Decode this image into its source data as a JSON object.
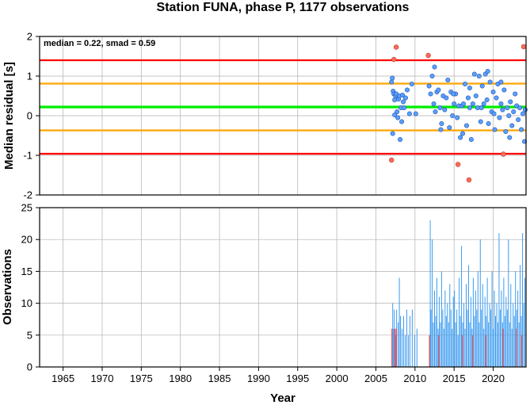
{
  "title": "Station FUNA, phase P, 1177 observations",
  "colors": {
    "upper_reference": "#ff0000",
    "smad_band": "#ffa500",
    "median_line": "#00ee00",
    "normal_point": "#5aa0ff",
    "outlier_point": "#ff6a5a",
    "bar_normal": "#3d9cf0",
    "bar_outlier": "#ff3030"
  },
  "chart_data": [
    {
      "type": "scatter",
      "annotation": "median = 0.22, smad = 0.59",
      "xlabel": "",
      "ylabel": "Median residual [s]",
      "xlim": [
        1962.0,
        2024.2
      ],
      "ylim": [
        -2,
        2
      ],
      "yticks": [
        "2",
        "1",
        "0",
        "-1",
        "-2"
      ],
      "grid": true,
      "hlines": [
        {
          "role": "median",
          "y": 0.22,
          "color": "#00ee00"
        },
        {
          "role": "median-plus-smad",
          "y": 0.81,
          "color": "#ffa500"
        },
        {
          "role": "median-minus-smad",
          "y": -0.37,
          "color": "#ffa500"
        },
        {
          "role": "upper-limit",
          "y": 1.4,
          "color": "#ff0000"
        },
        {
          "role": "lower-limit",
          "y": -0.96,
          "color": "#ff0000"
        }
      ],
      "points": [
        [
          2007.0,
          0.85
        ],
        [
          2007.1,
          0.95
        ],
        [
          2007.2,
          0.62
        ],
        [
          2007.3,
          0.55
        ],
        [
          2007.4,
          0.4
        ],
        [
          2007.5,
          0.5
        ],
        [
          2007.6,
          0.55
        ],
        [
          2007.7,
          0.1
        ],
        [
          2007.8,
          -0.05
        ],
        [
          2007.9,
          0.42
        ],
        [
          2008.0,
          0.5
        ],
        [
          2008.2,
          0.2
        ],
        [
          2008.3,
          -0.15
        ],
        [
          2008.4,
          0.52
        ],
        [
          2008.6,
          0.2
        ],
        [
          2008.8,
          0.45
        ],
        [
          2009.0,
          0.65
        ],
        [
          2009.3,
          0.05
        ],
        [
          2009.6,
          0.8
        ],
        [
          2010.1,
          0.05
        ],
        [
          2007.15,
          -0.45
        ],
        [
          2007.4,
          0.02
        ],
        [
          2008.1,
          -0.6
        ],
        [
          2008.5,
          0.35
        ],
        [
          2011.8,
          0.75
        ],
        [
          2012.0,
          0.55
        ],
        [
          2012.2,
          1.0
        ],
        [
          2012.4,
          0.3
        ],
        [
          2012.6,
          0.1
        ],
        [
          2012.8,
          0.6
        ],
        [
          2013.0,
          0.65
        ],
        [
          2013.2,
          0.2
        ],
        [
          2013.4,
          -0.2
        ],
        [
          2013.6,
          0.5
        ],
        [
          2013.8,
          0.15
        ],
        [
          2014.0,
          0.45
        ],
        [
          2014.2,
          0.9
        ],
        [
          2014.4,
          -0.3
        ],
        [
          2014.6,
          0.6
        ],
        [
          2014.8,
          0.0
        ],
        [
          2015.0,
          0.3
        ],
        [
          2015.2,
          0.55
        ],
        [
          2015.4,
          -0.05
        ],
        [
          2015.6,
          0.25
        ],
        [
          2015.8,
          -0.55
        ],
        [
          2016.0,
          0.25
        ],
        [
          2016.2,
          0.3
        ],
        [
          2016.4,
          0.8
        ],
        [
          2016.6,
          -0.25
        ],
        [
          2016.8,
          0.45
        ],
        [
          2017.0,
          0.2
        ],
        [
          2017.2,
          -0.6
        ],
        [
          2017.4,
          0.3
        ],
        [
          2017.6,
          1.05
        ],
        [
          2017.8,
          0.5
        ],
        [
          2018.0,
          0.2
        ],
        [
          2018.2,
          1.0
        ],
        [
          2018.4,
          -0.15
        ],
        [
          2018.6,
          0.75
        ],
        [
          2018.8,
          0.3
        ],
        [
          2019.0,
          1.05
        ],
        [
          2019.2,
          0.4
        ],
        [
          2019.4,
          -0.2
        ],
        [
          2019.6,
          0.85
        ],
        [
          2019.8,
          0.1
        ],
        [
          2020.0,
          0.6
        ],
        [
          2020.2,
          -0.35
        ],
        [
          2020.4,
          0.45
        ],
        [
          2020.6,
          0.8
        ],
        [
          2020.8,
          -0.05
        ],
        [
          2021.0,
          0.3
        ],
        [
          2021.2,
          0.15
        ],
        [
          2021.4,
          0.65
        ],
        [
          2021.6,
          -0.4
        ],
        [
          2021.8,
          0.2
        ],
        [
          2022.0,
          0.0
        ],
        [
          2022.2,
          0.35
        ],
        [
          2022.4,
          -0.25
        ],
        [
          2022.6,
          0.1
        ],
        [
          2022.8,
          0.55
        ],
        [
          2023.0,
          0.25
        ],
        [
          2023.2,
          -0.1
        ],
        [
          2023.4,
          0.2
        ],
        [
          2023.6,
          -0.35
        ],
        [
          2023.8,
          0.05
        ],
        [
          2024.0,
          -0.65
        ],
        [
          2024.1,
          0.15
        ],
        [
          2012.5,
          1.23
        ],
        [
          2013.3,
          -0.35
        ],
        [
          2014.9,
          0.55
        ],
        [
          2016.1,
          -0.45
        ],
        [
          2017.0,
          0.7
        ],
        [
          2018.5,
          0.2
        ],
        [
          2019.3,
          1.12
        ],
        [
          2020.1,
          0.05
        ],
        [
          2021.0,
          0.85
        ],
        [
          2022.1,
          -0.55
        ]
      ],
      "outliers": [
        [
          2007.0,
          -1.12
        ],
        [
          2007.3,
          1.42
        ],
        [
          2007.6,
          1.73
        ],
        [
          2011.7,
          1.52
        ],
        [
          2015.5,
          -1.23
        ],
        [
          2016.9,
          -1.62
        ],
        [
          2021.3,
          -0.97
        ],
        [
          2023.9,
          1.74
        ]
      ]
    },
    {
      "type": "bar",
      "xlabel": "Year",
      "ylabel": "Observations",
      "xlim": [
        1962.0,
        2024.2
      ],
      "ylim": [
        0,
        25
      ],
      "xticks": [
        "1965",
        "1970",
        "1975",
        "1980",
        "1985",
        "1990",
        "1995",
        "2000",
        "2005",
        "2010",
        "2015",
        "2020"
      ],
      "yticks": [
        "25",
        "20",
        "15",
        "10",
        "5",
        "0"
      ],
      "grid": true,
      "bar_width_years": 0.07,
      "bars": [
        [
          2007.1,
          10
        ],
        [
          2007.2,
          6
        ],
        [
          2007.3,
          9
        ],
        [
          2007.5,
          5
        ],
        [
          2007.6,
          9
        ],
        [
          2007.8,
          7
        ],
        [
          2007.95,
          14
        ],
        [
          2008.1,
          8
        ],
        [
          2008.3,
          6
        ],
        [
          2008.5,
          8
        ],
        [
          2008.7,
          5
        ],
        [
          2008.9,
          9
        ],
        [
          2009.1,
          5
        ],
        [
          2009.3,
          8
        ],
        [
          2009.6,
          9
        ],
        [
          2009.9,
          5
        ],
        [
          2010.2,
          6
        ],
        [
          2011.9,
          23
        ],
        [
          2012.0,
          9
        ],
        [
          2012.15,
          20
        ],
        [
          2012.3,
          7
        ],
        [
          2012.45,
          12
        ],
        [
          2012.6,
          8
        ],
        [
          2012.75,
          14
        ],
        [
          2012.9,
          6
        ],
        [
          2013.05,
          11
        ],
        [
          2013.2,
          7
        ],
        [
          2013.35,
          15
        ],
        [
          2013.5,
          9
        ],
        [
          2013.65,
          6
        ],
        [
          2013.8,
          12
        ],
        [
          2013.95,
          8
        ],
        [
          2014.1,
          10
        ],
        [
          2014.25,
          7
        ],
        [
          2014.4,
          13
        ],
        [
          2014.55,
          9
        ],
        [
          2014.7,
          6
        ],
        [
          2014.85,
          11
        ],
        [
          2015.0,
          12
        ],
        [
          2015.15,
          7
        ],
        [
          2015.3,
          9
        ],
        [
          2015.45,
          5
        ],
        [
          2015.6,
          14
        ],
        [
          2015.75,
          8
        ],
        [
          2015.9,
          19
        ],
        [
          2016.05,
          7
        ],
        [
          2016.2,
          10
        ],
        [
          2016.35,
          6
        ],
        [
          2016.5,
          13
        ],
        [
          2016.65,
          9
        ],
        [
          2016.8,
          16
        ],
        [
          2016.95,
          7
        ],
        [
          2017.1,
          11
        ],
        [
          2017.25,
          6
        ],
        [
          2017.4,
          14
        ],
        [
          2017.55,
          8
        ],
        [
          2017.7,
          12
        ],
        [
          2017.85,
          9
        ],
        [
          2018.0,
          15
        ],
        [
          2018.15,
          7
        ],
        [
          2018.3,
          20
        ],
        [
          2018.45,
          9
        ],
        [
          2018.6,
          13
        ],
        [
          2018.75,
          6
        ],
        [
          2018.9,
          11
        ],
        [
          2019.05,
          8
        ],
        [
          2019.2,
          14
        ],
        [
          2019.35,
          7
        ],
        [
          2019.5,
          10
        ],
        [
          2019.65,
          9
        ],
        [
          2019.8,
          15
        ],
        [
          2019.95,
          6
        ],
        [
          2020.1,
          12
        ],
        [
          2020.25,
          8
        ],
        [
          2020.4,
          10
        ],
        [
          2020.55,
          7
        ],
        [
          2020.7,
          21
        ],
        [
          2020.85,
          9
        ],
        [
          2021.0,
          12
        ],
        [
          2021.15,
          7
        ],
        [
          2021.3,
          14
        ],
        [
          2021.45,
          8
        ],
        [
          2021.6,
          11
        ],
        [
          2021.75,
          9
        ],
        [
          2021.9,
          20
        ],
        [
          2022.05,
          7
        ],
        [
          2022.2,
          13
        ],
        [
          2022.35,
          6
        ],
        [
          2022.5,
          10
        ],
        [
          2022.65,
          8
        ],
        [
          2022.8,
          15
        ],
        [
          2022.95,
          9
        ],
        [
          2023.1,
          12
        ],
        [
          2023.25,
          7
        ],
        [
          2023.4,
          16
        ],
        [
          2023.55,
          8
        ],
        [
          2023.7,
          21
        ],
        [
          2023.85,
          10
        ],
        [
          2024.0,
          14
        ]
      ],
      "outlier_bars": [
        [
          2007.0,
          6
        ],
        [
          2007.4,
          6
        ],
        [
          2007.55,
          6
        ],
        [
          2011.8,
          5
        ],
        [
          2013.0,
          5
        ],
        [
          2016.0,
          5
        ],
        [
          2017.3,
          5
        ],
        [
          2019.0,
          5
        ],
        [
          2021.2,
          6
        ],
        [
          2022.9,
          6
        ],
        [
          2023.6,
          5
        ]
      ]
    }
  ]
}
